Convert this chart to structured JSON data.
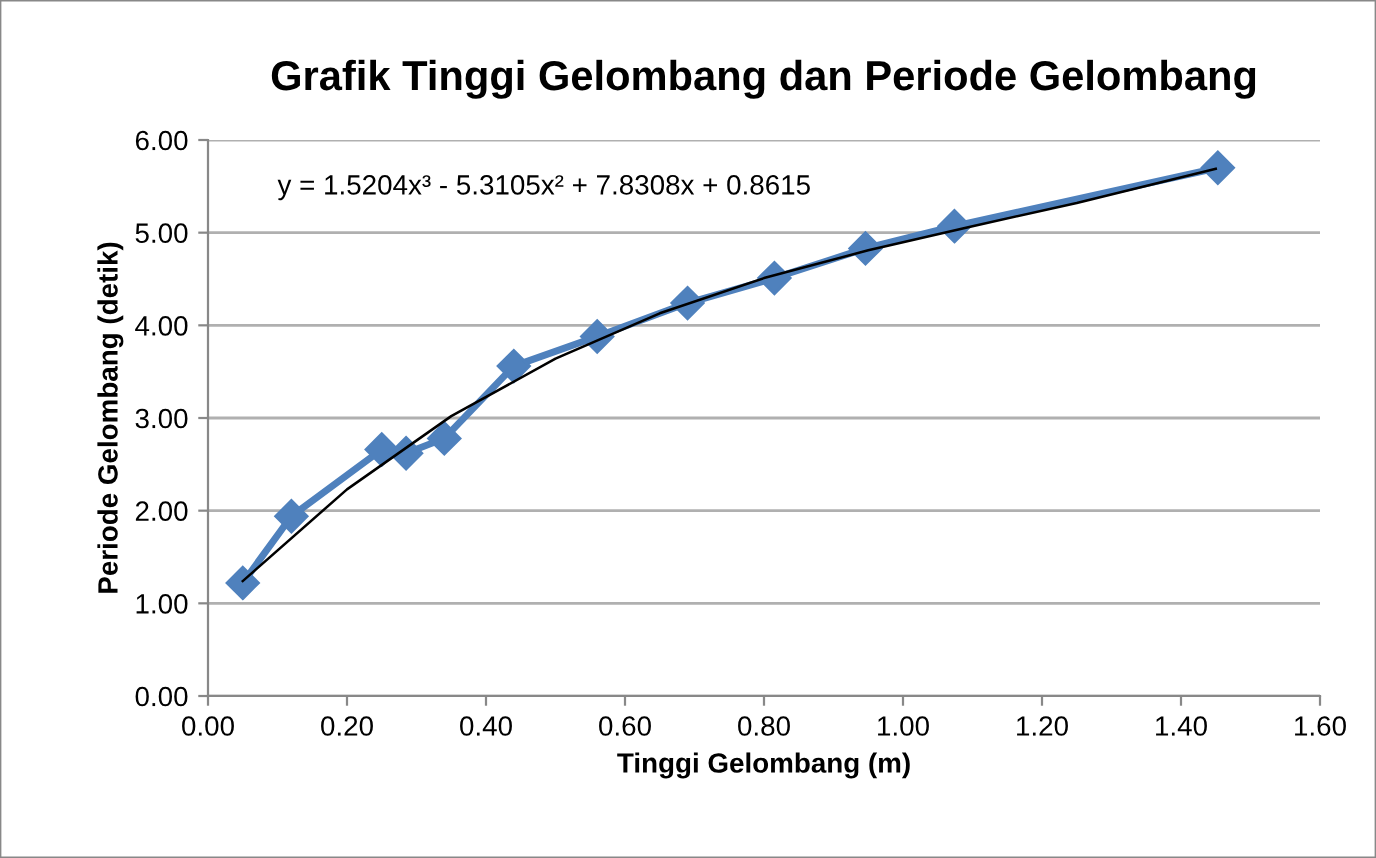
{
  "chart_data": {
    "type": "line",
    "title": "Grafik Tinggi Gelombang dan Periode Gelombang",
    "xlabel": "Tinggi Gelombang (m)",
    "ylabel": "Periode Gelombang (detik)",
    "annotations": [
      "y = 1.5204x³ - 5.3105x² + 7.8308x + 0.8615"
    ],
    "x": [
      0.05,
      0.12,
      0.25,
      0.285,
      0.34,
      0.44,
      0.56,
      0.69,
      0.815,
      0.946,
      1.074,
      1.453
    ],
    "series": [
      {
        "color": "#4f81bd",
        "marker": "diamond",
        "values": [
          1.22,
          1.94,
          2.66,
          2.62,
          2.78,
          3.56,
          3.88,
          4.24,
          4.51,
          4.83,
          5.07,
          5.7
        ]
      },
      {
        "color": "#000000",
        "marker": "none",
        "x": [
          0.05,
          0.2,
          0.35,
          0.5,
          0.65,
          0.8,
          0.95,
          1.1,
          1.25,
          1.45
        ],
        "values": [
          1.24,
          2.23,
          3.02,
          3.64,
          4.13,
          4.51,
          4.81,
          5.07,
          5.32,
          5.69
        ]
      }
    ],
    "xlim": [
      0,
      1.6
    ],
    "xticks": [
      {
        "value": 0,
        "label": "0.00"
      },
      {
        "value": 0.2,
        "label": "0.20"
      },
      {
        "value": 0.4,
        "label": "0.40"
      },
      {
        "value": 0.6,
        "label": "0.60"
      },
      {
        "value": 0.8,
        "label": "0.80"
      },
      {
        "value": 1.0,
        "label": "1.00"
      },
      {
        "value": 1.2,
        "label": "1.20"
      },
      {
        "value": 1.4,
        "label": "1.40"
      },
      {
        "value": 1.6,
        "label": "1.60"
      }
    ],
    "ylim": [
      0,
      6
    ],
    "yticks": [
      {
        "value": 0,
        "label": "0.00"
      },
      {
        "value": 1,
        "label": "1.00"
      },
      {
        "value": 2,
        "label": "2.00"
      },
      {
        "value": 3,
        "label": "3.00"
      },
      {
        "value": 4,
        "label": "4.00"
      },
      {
        "value": 5,
        "label": "5.00"
      },
      {
        "value": 6,
        "label": "6.00"
      }
    ],
    "grid": "y",
    "legend": false
  }
}
